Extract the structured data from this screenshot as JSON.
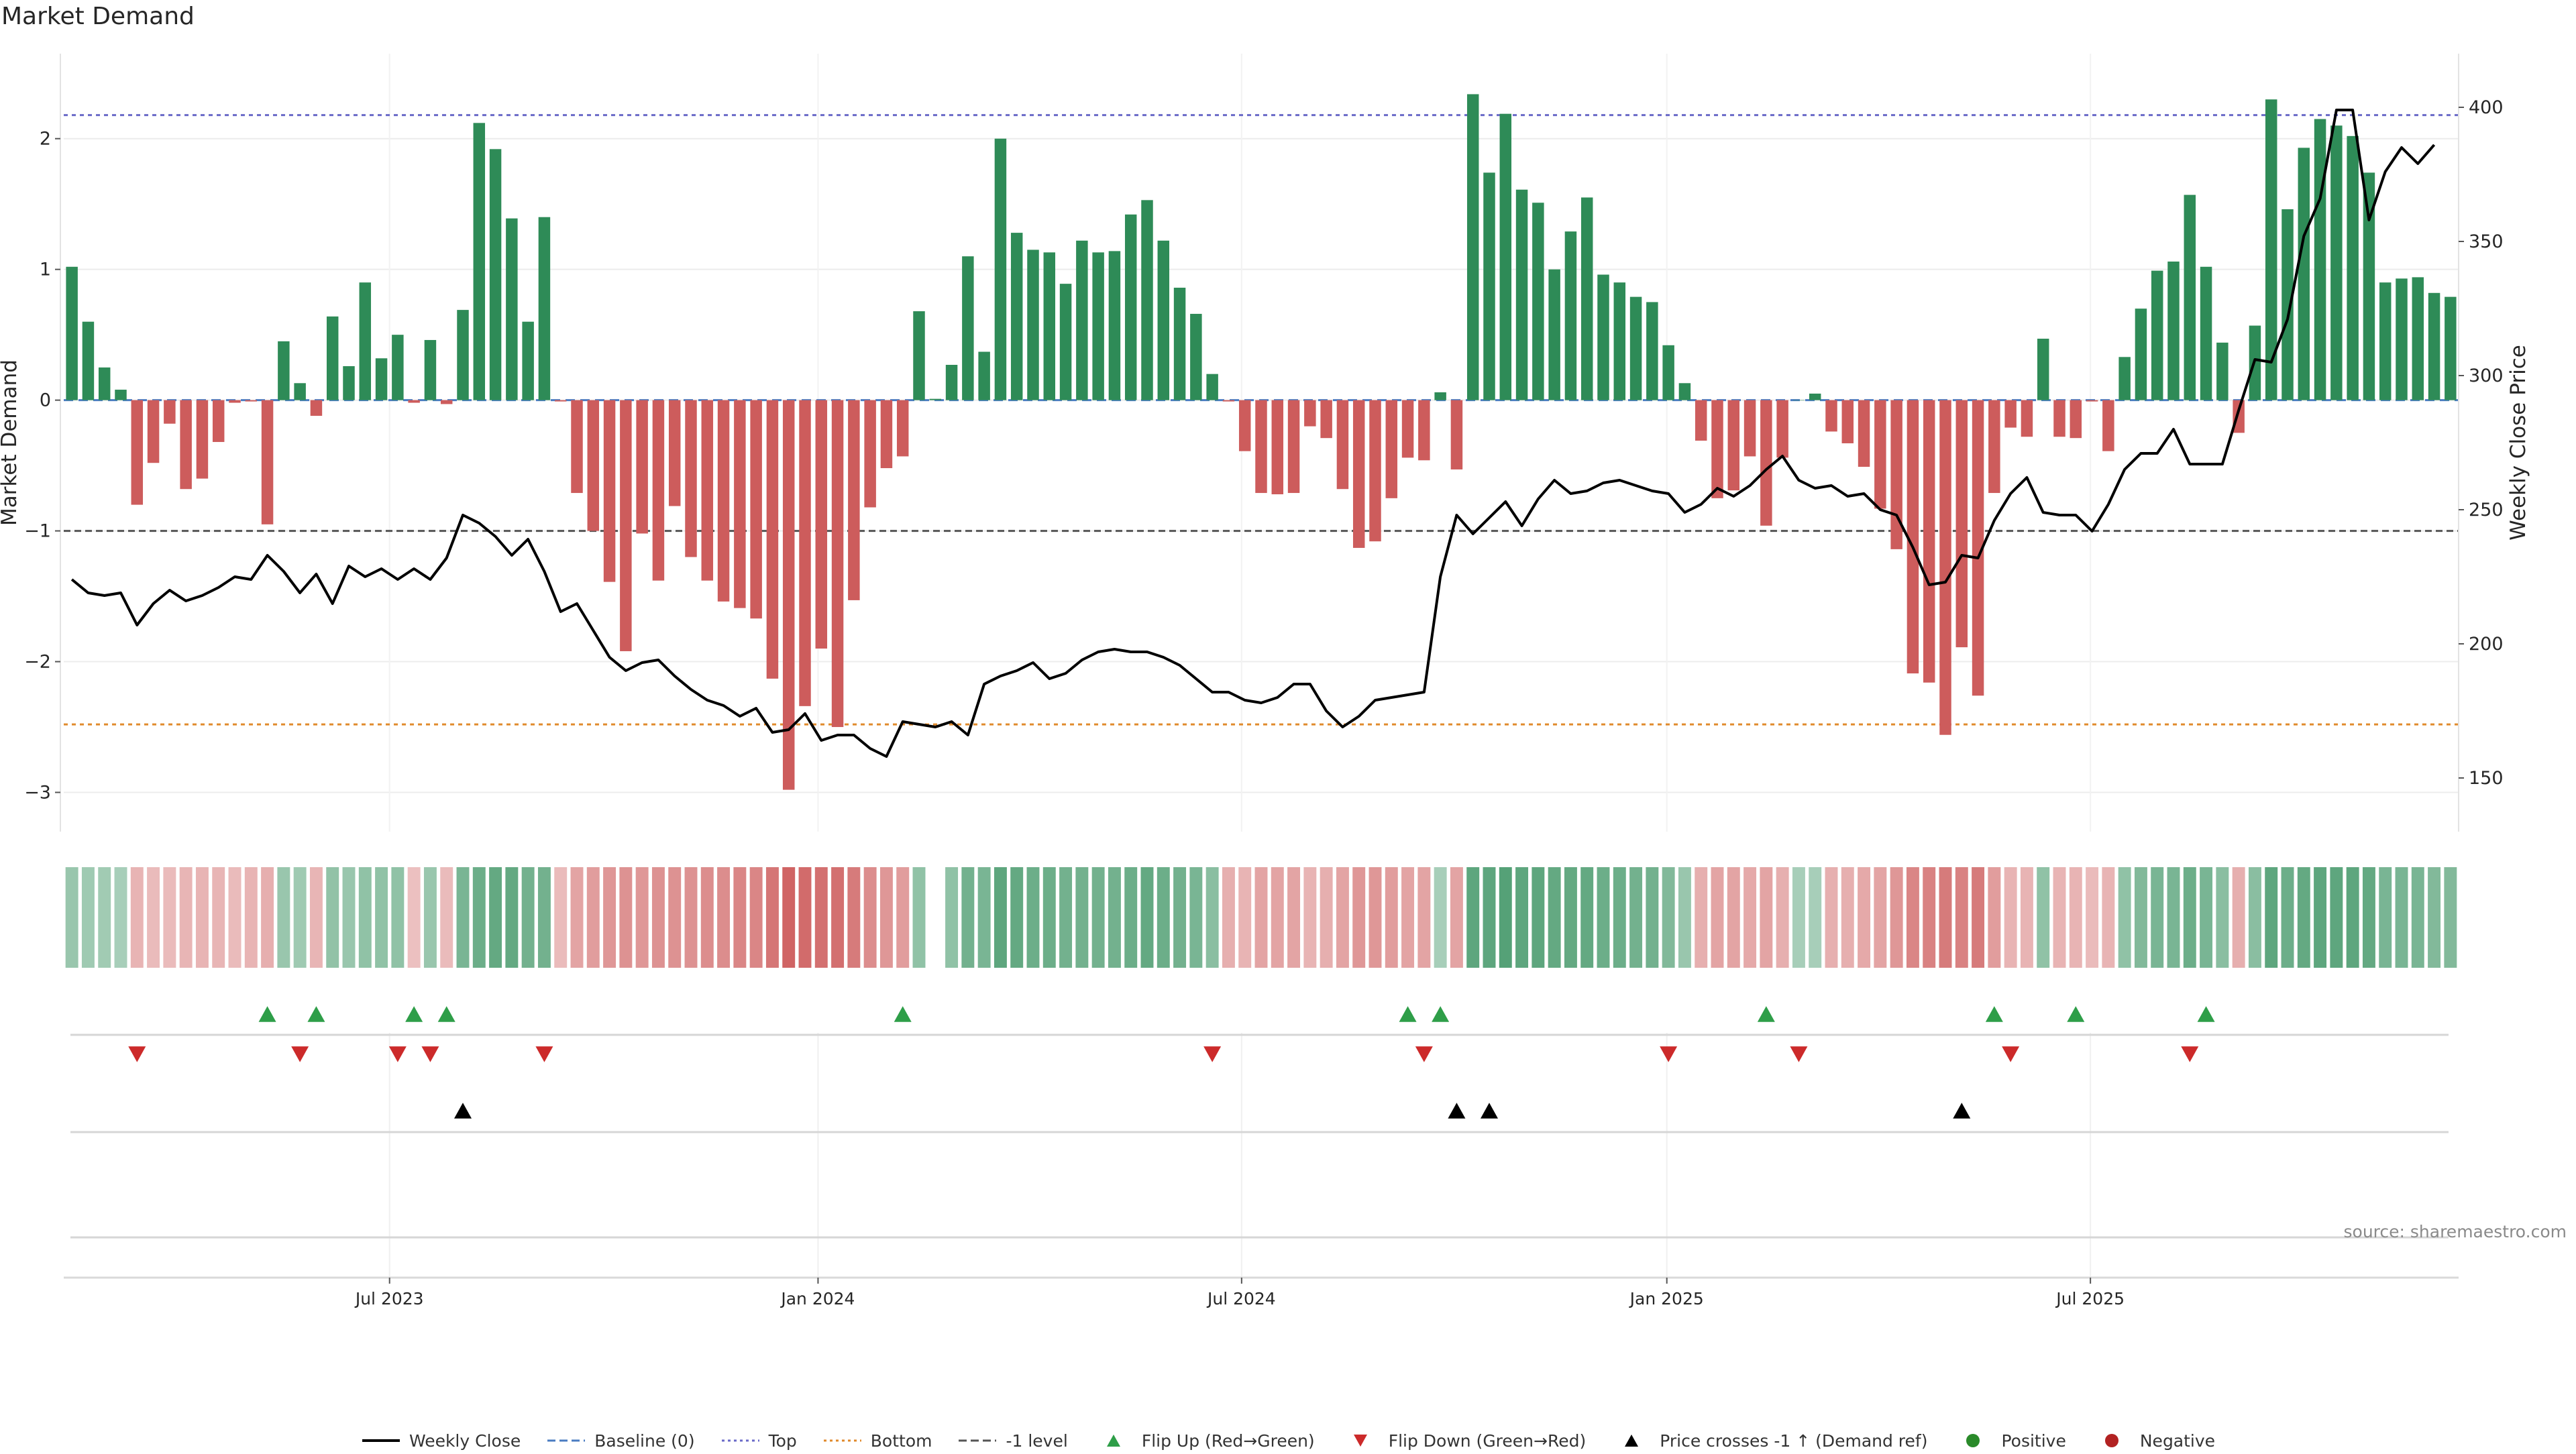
{
  "title": "Market Demand",
  "source": "source: sharemaestro.com",
  "chart_data": {
    "type": "bar",
    "title": "Market Demand",
    "ylabel": "Market Demand",
    "y2label": "Weekly Close Price",
    "ylim": [
      -3.3,
      2.65
    ],
    "y2lim": [
      130,
      420
    ],
    "yticks": [
      -3,
      -2,
      -1,
      0,
      1,
      2
    ],
    "y2ticks": [
      150,
      200,
      250,
      300,
      350,
      400
    ],
    "xticks": [
      "Jul 2023",
      "Jan 2024",
      "Jul 2024",
      "Jan 2025",
      "Jul 2025"
    ],
    "xtick_weeks": [
      20,
      46.3,
      72.3,
      98.4,
      124.4
    ],
    "reference_lines": {
      "top": 2.18,
      "bottom": -2.48,
      "minus_one": -1,
      "baseline": 0
    },
    "demand": [
      1.02,
      0.6,
      0.25,
      0.08,
      -0.8,
      -0.48,
      -0.18,
      -0.68,
      -0.6,
      -0.32,
      -0.02,
      -0.01,
      -0.95,
      0.45,
      0.13,
      -0.12,
      0.64,
      0.26,
      0.9,
      0.32,
      0.5,
      -0.02,
      0.46,
      -0.03,
      0.69,
      2.12,
      1.92,
      1.39,
      0.6,
      1.4,
      -0.01,
      -0.71,
      -1.0,
      -1.39,
      -1.92,
      -1.02,
      -1.38,
      -0.81,
      -1.2,
      -1.38,
      -1.54,
      -1.59,
      -1.67,
      -2.13,
      -2.98,
      -2.34,
      -1.9,
      -2.5,
      -1.53,
      -0.82,
      -0.52,
      -0.43,
      0.68,
      0.01,
      0.27,
      1.1,
      0.37,
      2.0,
      1.28,
      1.15,
      1.13,
      0.89,
      1.22,
      1.13,
      1.14,
      1.42,
      1.53,
      1.22,
      0.86,
      0.66,
      0.2,
      -0.01,
      -0.39,
      -0.71,
      -0.72,
      -0.71,
      -0.2,
      -0.29,
      -0.68,
      -1.13,
      -1.08,
      -0.75,
      -0.44,
      -0.46,
      0.06,
      -0.53,
      2.34,
      1.74,
      2.19,
      1.61,
      1.51,
      1.0,
      1.29,
      1.55,
      0.96,
      0.9,
      0.79,
      0.75,
      0.42,
      0.13,
      -0.31,
      -0.75,
      -0.69,
      -0.43,
      -0.96,
      -0.44,
      0.0,
      0.05,
      -0.24,
      -0.33,
      -0.51,
      -0.83,
      -1.14,
      -2.09,
      -2.16,
      -2.56,
      -1.89,
      -2.26,
      -0.71,
      -0.21,
      -0.28,
      0.47,
      -0.28,
      -0.29,
      -0.01,
      -0.39,
      0.33,
      0.7,
      0.99,
      1.06,
      1.57,
      1.02,
      0.44,
      -0.25,
      0.57,
      2.3,
      1.46,
      1.93,
      2.15,
      2.1,
      2.02,
      1.74,
      0.9,
      0.93,
      0.94,
      0.82,
      0.79
    ],
    "close": [
      224,
      219,
      218,
      219,
      207,
      215,
      220,
      216,
      218,
      221,
      225,
      224,
      233,
      227,
      219,
      226,
      215,
      229,
      225,
      228,
      224,
      228,
      224,
      232,
      248,
      245,
      240,
      233,
      239,
      227,
      212,
      215,
      205,
      195,
      190,
      193,
      194,
      188,
      183,
      179,
      177,
      173,
      176,
      167,
      168,
      174,
      164,
      166,
      166,
      161,
      158,
      171,
      170,
      169,
      171,
      166,
      185,
      188,
      190,
      193,
      187,
      189,
      194,
      197,
      198,
      197,
      197,
      195,
      192,
      187,
      182,
      182,
      179,
      178,
      180,
      185,
      185,
      175,
      169,
      173,
      179,
      180,
      181,
      182,
      225,
      248,
      241,
      247,
      253,
      244,
      254,
      261,
      256,
      257,
      260,
      261,
      259,
      257,
      256,
      249,
      252,
      258,
      255,
      259,
      265,
      270,
      261,
      258,
      259,
      255,
      256,
      250,
      248,
      236,
      222,
      223,
      233,
      232,
      246,
      256,
      262,
      249,
      248,
      248,
      242,
      252,
      265,
      271,
      271,
      280,
      267,
      267,
      267,
      287,
      306,
      305,
      321,
      352,
      366,
      399,
      399,
      358,
      376,
      385,
      379,
      386
    ],
    "heat_intensity": [
      0.35,
      0.3,
      0.28,
      0.25,
      0.3,
      0.25,
      0.25,
      0.28,
      0.3,
      0.28,
      0.25,
      0.3,
      0.35,
      0.35,
      0.3,
      0.28,
      0.38,
      0.35,
      0.4,
      0.4,
      0.4,
      0.2,
      0.35,
      0.25,
      0.55,
      0.65,
      0.7,
      0.7,
      0.6,
      0.6,
      0.25,
      0.45,
      0.5,
      0.55,
      0.6,
      0.55,
      0.6,
      0.6,
      0.6,
      0.65,
      0.65,
      0.7,
      0.7,
      0.85,
      1.0,
      0.95,
      0.9,
      0.9,
      0.8,
      0.65,
      0.55,
      0.5,
      0.4,
      0.0,
      0.4,
      0.6,
      0.55,
      0.75,
      0.7,
      0.65,
      0.65,
      0.6,
      0.6,
      0.6,
      0.6,
      0.65,
      0.7,
      0.65,
      0.6,
      0.55,
      0.45,
      0.35,
      0.3,
      0.45,
      0.45,
      0.45,
      0.3,
      0.35,
      0.45,
      0.55,
      0.55,
      0.5,
      0.45,
      0.45,
      0.25,
      0.45,
      0.75,
      0.75,
      0.8,
      0.75,
      0.75,
      0.7,
      0.7,
      0.7,
      0.65,
      0.65,
      0.6,
      0.6,
      0.5,
      0.35,
      0.35,
      0.45,
      0.45,
      0.4,
      0.45,
      0.35,
      0.25,
      0.25,
      0.35,
      0.35,
      0.4,
      0.45,
      0.55,
      0.7,
      0.75,
      0.8,
      0.75,
      0.8,
      0.5,
      0.3,
      0.3,
      0.4,
      0.3,
      0.3,
      0.25,
      0.3,
      0.4,
      0.5,
      0.55,
      0.55,
      0.65,
      0.55,
      0.45,
      0.35,
      0.45,
      0.75,
      0.65,
      0.7,
      0.75,
      0.75,
      0.75,
      0.7,
      0.55,
      0.55,
      0.55,
      0.5,
      0.5
    ],
    "flip_up_weeks": [
      12,
      15,
      21,
      23,
      51,
      82,
      84,
      104,
      118,
      123,
      131
    ],
    "flip_down_weeks": [
      4,
      14,
      20,
      22,
      29,
      70,
      83,
      98,
      106,
      119,
      130
    ],
    "price_cross_weeks": [
      24,
      85,
      87,
      116
    ],
    "heat_gap_weeks": [
      53
    ]
  },
  "legend": [
    {
      "label": "Weekly Close",
      "symbol": "line-solid",
      "color": "#000000"
    },
    {
      "label": "Baseline (0)",
      "symbol": "line-dashed",
      "color": "#4a7cc2"
    },
    {
      "label": "Top",
      "symbol": "line-dotted",
      "color": "#6a6ac8"
    },
    {
      "label": "Bottom",
      "symbol": "line-dotted",
      "color": "#e08a2c"
    },
    {
      "label": "-1 level",
      "symbol": "line-dashed",
      "color": "#555555"
    },
    {
      "label": "Flip Up (Red→Green)",
      "symbol": "triangle-up",
      "color": "#2e9e48"
    },
    {
      "label": "Flip Down (Green→Red)",
      "symbol": "triangle-down",
      "color": "#cc2a2a"
    },
    {
      "label": "Price crosses -1 ↑ (Demand ref)",
      "symbol": "triangle-up",
      "color": "#000000"
    },
    {
      "label": "Positive",
      "symbol": "circle",
      "color": "#2a8a2a"
    },
    {
      "label": "Negative",
      "symbol": "circle",
      "color": "#b22222"
    }
  ],
  "colors": {
    "positive_bar": "#2e8b57",
    "negative_bar": "#cd5c5c",
    "flip_up": "#2e9e48",
    "flip_down": "#cc2a2a",
    "price_line": "#000000"
  }
}
